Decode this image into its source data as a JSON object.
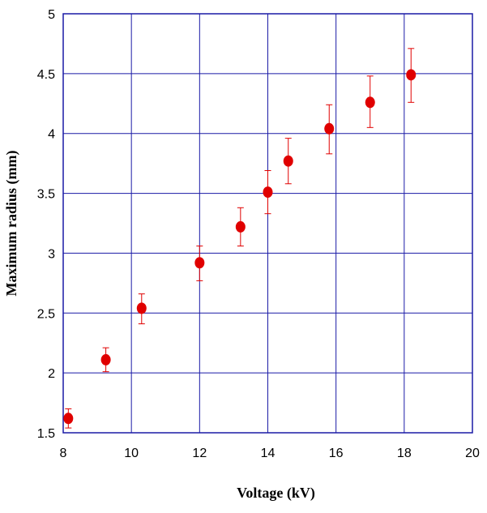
{
  "chart_data": {
    "type": "scatter",
    "title": "",
    "xlabel": "Voltage (kV)",
    "ylabel": "Maximum radius (mm)",
    "xlim": [
      8,
      20
    ],
    "ylim": [
      1.5,
      5
    ],
    "x_ticks": [
      "8",
      "10",
      "12",
      "14",
      "16",
      "18",
      "20"
    ],
    "y_ticks": [
      "1.5",
      "2",
      "2.5",
      "3",
      "3.5",
      "4",
      "4.5",
      "5"
    ],
    "grid": true,
    "colors": {
      "grid": "#1a1aa6",
      "marker": "#e00000",
      "errorbar": "#e00000"
    },
    "series": [
      {
        "points": [
          {
            "x": 8.15,
            "y": 1.62,
            "err_low": 1.54,
            "err_high": 1.7
          },
          {
            "x": 9.25,
            "y": 2.11,
            "err_low": 2.01,
            "err_high": 2.21
          },
          {
            "x": 10.3,
            "y": 2.54,
            "err_low": 2.41,
            "err_high": 2.66
          },
          {
            "x": 12.0,
            "y": 2.92,
            "err_low": 2.77,
            "err_high": 3.06
          },
          {
            "x": 13.2,
            "y": 3.22,
            "err_low": 3.06,
            "err_high": 3.38
          },
          {
            "x": 14.0,
            "y": 3.51,
            "err_low": 3.33,
            "err_high": 3.69
          },
          {
            "x": 14.6,
            "y": 3.77,
            "err_low": 3.58,
            "err_high": 3.96
          },
          {
            "x": 15.8,
            "y": 4.04,
            "err_low": 3.83,
            "err_high": 4.24
          },
          {
            "x": 17.0,
            "y": 4.26,
            "err_low": 4.05,
            "err_high": 4.48
          },
          {
            "x": 18.2,
            "y": 4.49,
            "err_low": 4.26,
            "err_high": 4.71
          }
        ]
      }
    ]
  }
}
